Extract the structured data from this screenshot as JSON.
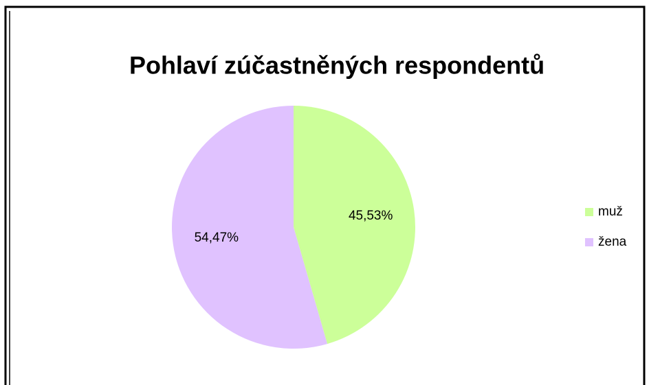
{
  "chart_data": {
    "type": "pie",
    "title": "Pohlaví zúčastněných respondentů",
    "categories": [
      "muž",
      "žena"
    ],
    "values": [
      45.53,
      54.47
    ],
    "value_labels": [
      "45,53%",
      "54,47%"
    ],
    "colors": [
      "#ccff99",
      "#e0c2ff"
    ],
    "legend": "right"
  }
}
